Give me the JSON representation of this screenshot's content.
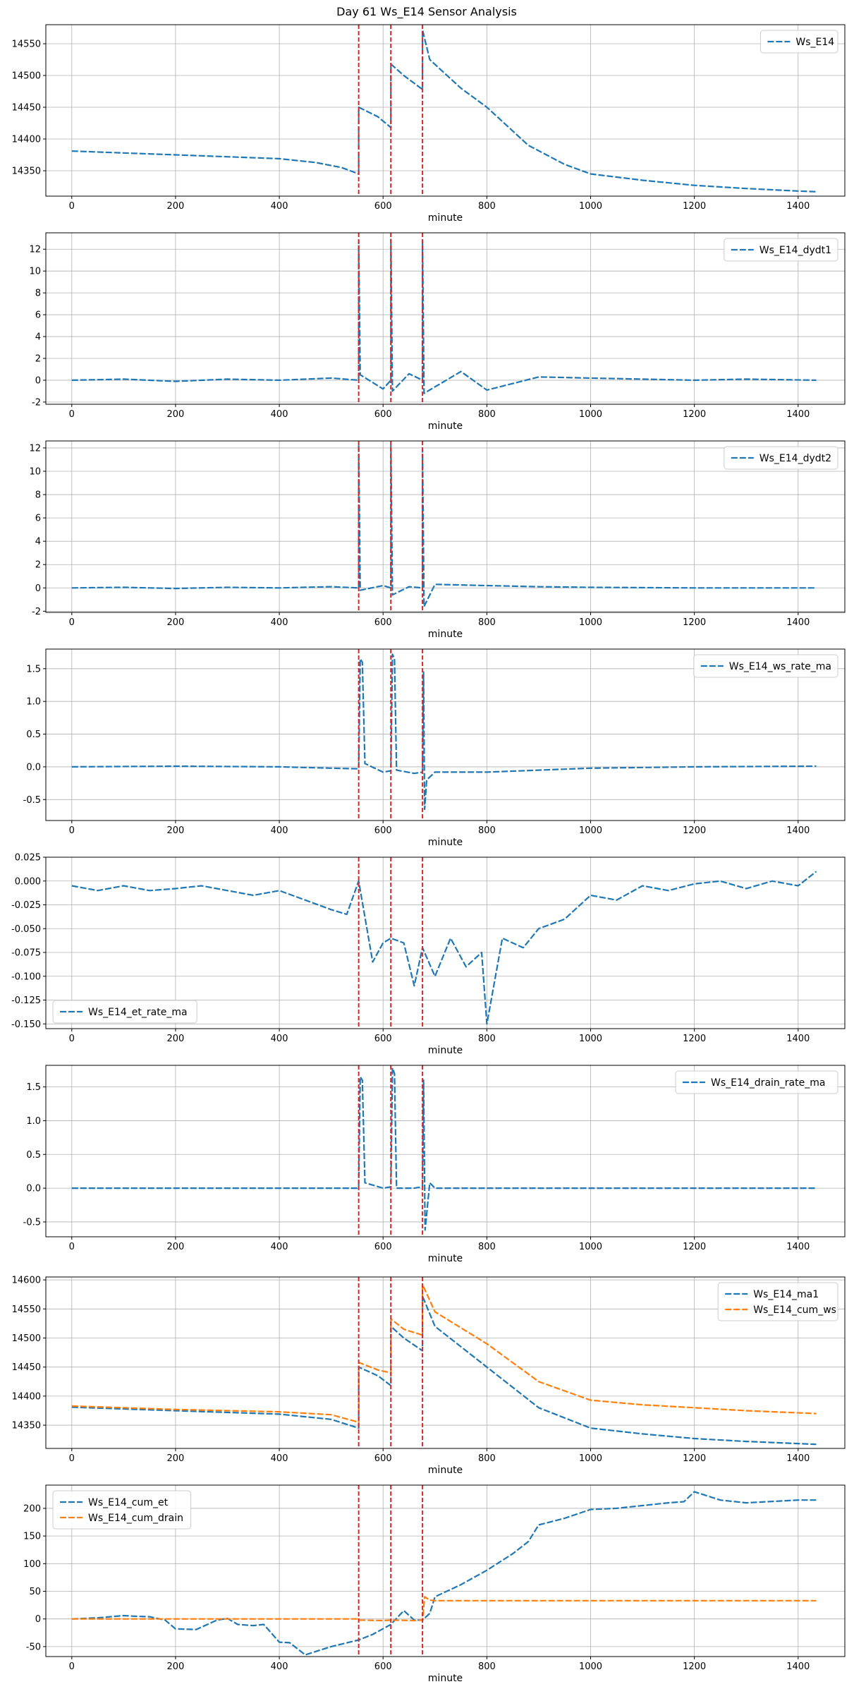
{
  "title": "Day 61 Ws_E14 Sensor Analysis",
  "colors": {
    "blue": "#1f77b4",
    "orange": "#ff7f0e",
    "event": "#d62728",
    "grid": "#b0b0b0"
  },
  "chart_data": [
    {
      "type": "line",
      "xlabel": "minute",
      "xlim": [
        -50,
        1490
      ],
      "ylim": [
        14310,
        14580
      ],
      "xticks": [
        0,
        200,
        400,
        600,
        800,
        1000,
        1200,
        1400
      ],
      "yticks": [
        14350,
        14400,
        14450,
        14500,
        14550
      ],
      "legend_position": "upper right",
      "events": [
        553,
        615,
        676
      ],
      "series": [
        {
          "name": "Ws_E14",
          "color": "#1f77b4",
          "x": [
            0,
            100,
            200,
            300,
            400,
            470,
            520,
            553,
            553,
            590,
            615,
            615,
            640,
            676,
            676,
            690,
            750,
            800,
            880,
            950,
            1000,
            1100,
            1200,
            1300,
            1400,
            1435
          ],
          "y": [
            14381,
            14378,
            14375,
            14372,
            14369,
            14363,
            14355,
            14345,
            14450,
            14435,
            14418,
            14518,
            14500,
            14478,
            14572,
            14525,
            14480,
            14450,
            14390,
            14360,
            14345,
            14335,
            14327,
            14322,
            14318,
            14317
          ]
        }
      ]
    },
    {
      "type": "line",
      "xlabel": "minute",
      "xlim": [
        -50,
        1490
      ],
      "ylim": [
        -2.2,
        13.5
      ],
      "xticks": [
        0,
        200,
        400,
        600,
        800,
        1000,
        1200,
        1400
      ],
      "yticks": [
        -2,
        0,
        2,
        4,
        6,
        8,
        10,
        12
      ],
      "legend_position": "upper right",
      "events": [
        553,
        615,
        676
      ],
      "series": [
        {
          "name": "Ws_E14_dydt1",
          "color": "#1f77b4",
          "x": [
            0,
            100,
            200,
            300,
            400,
            500,
            553,
            553,
            556,
            600,
            615,
            615,
            618,
            650,
            676,
            676,
            679,
            750,
            800,
            900,
            1000,
            1100,
            1200,
            1300,
            1435
          ],
          "y": [
            0,
            0.1,
            -0.1,
            0.1,
            0,
            0.2,
            0,
            12.8,
            0.5,
            -0.8,
            0,
            12.9,
            -1.0,
            0.6,
            0,
            12.8,
            -1.2,
            0.8,
            -0.9,
            0.3,
            0.2,
            0.1,
            0,
            0.1,
            0
          ]
        }
      ]
    },
    {
      "type": "line",
      "xlabel": "minute",
      "xlim": [
        -50,
        1490
      ],
      "ylim": [
        -2.1,
        12.6
      ],
      "xticks": [
        0,
        200,
        400,
        600,
        800,
        1000,
        1200,
        1400
      ],
      "yticks": [
        -2,
        0,
        2,
        4,
        6,
        8,
        10,
        12
      ],
      "legend_position": "upper right",
      "events": [
        553,
        615,
        676
      ],
      "series": [
        {
          "name": "Ws_E14_dydt2",
          "color": "#1f77b4",
          "x": [
            0,
            100,
            200,
            300,
            400,
            500,
            553,
            553,
            556,
            600,
            615,
            615,
            618,
            650,
            676,
            676,
            679,
            700,
            800,
            900,
            1000,
            1200,
            1435
          ],
          "y": [
            0,
            0.05,
            -0.05,
            0.05,
            0,
            0.1,
            0,
            12.3,
            -0.2,
            0.2,
            0,
            12.2,
            -0.6,
            0.1,
            0,
            11.9,
            -1.6,
            0.3,
            0.2,
            0.1,
            0.05,
            0,
            0
          ]
        }
      ]
    },
    {
      "type": "line",
      "xlabel": "minute",
      "xlim": [
        -50,
        1490
      ],
      "ylim": [
        -0.82,
        1.8
      ],
      "xticks": [
        0,
        200,
        400,
        600,
        800,
        1000,
        1200,
        1400
      ],
      "yticks": [
        -0.5,
        0.0,
        0.5,
        1.0,
        1.5
      ],
      "legend_position": "upper right",
      "events": [
        553,
        615,
        676
      ],
      "series": [
        {
          "name": "Ws_E14_ws_rate_ma",
          "color": "#1f77b4",
          "x": [
            0,
            200,
            400,
            500,
            553,
            556,
            560,
            565,
            600,
            615,
            618,
            622,
            626,
            660,
            676,
            678,
            680,
            684,
            700,
            800,
            900,
            1000,
            1200,
            1435
          ],
          "y": [
            0,
            0.01,
            0,
            -0.02,
            -0.03,
            1.65,
            1.6,
            0.05,
            -0.08,
            -0.06,
            1.72,
            1.65,
            -0.05,
            -0.1,
            -0.08,
            1.45,
            -0.65,
            -0.2,
            -0.08,
            -0.08,
            -0.05,
            -0.02,
            0,
            0.01
          ]
        }
      ]
    },
    {
      "type": "line",
      "xlabel": "minute",
      "xlim": [
        -50,
        1490
      ],
      "ylim": [
        -0.155,
        0.025
      ],
      "xticks": [
        0,
        200,
        400,
        600,
        800,
        1000,
        1200,
        1400
      ],
      "yticks": [
        -0.15,
        -0.125,
        -0.1,
        -0.075,
        -0.05,
        -0.025,
        0.0,
        0.025
      ],
      "legend_position": "lower left",
      "events": [
        553,
        615,
        676
      ],
      "series": [
        {
          "name": "Ws_E14_et_rate_ma",
          "color": "#1f77b4",
          "x": [
            0,
            50,
            100,
            150,
            200,
            250,
            300,
            350,
            400,
            450,
            500,
            530,
            553,
            580,
            600,
            615,
            640,
            660,
            676,
            700,
            730,
            760,
            790,
            800,
            830,
            870,
            900,
            950,
            1000,
            1050,
            1100,
            1150,
            1200,
            1250,
            1300,
            1350,
            1400,
            1435
          ],
          "y": [
            -0.005,
            -0.01,
            -0.005,
            -0.01,
            -0.008,
            -0.005,
            -0.01,
            -0.015,
            -0.01,
            -0.02,
            -0.03,
            -0.035,
            0.0,
            -0.085,
            -0.065,
            -0.06,
            -0.065,
            -0.11,
            -0.07,
            -0.1,
            -0.06,
            -0.09,
            -0.075,
            -0.15,
            -0.06,
            -0.07,
            -0.05,
            -0.04,
            -0.015,
            -0.02,
            -0.005,
            -0.01,
            -0.003,
            0.0,
            -0.008,
            0.0,
            -0.005,
            0.01
          ]
        }
      ]
    },
    {
      "type": "line",
      "xlabel": "minute",
      "xlim": [
        -50,
        1490
      ],
      "ylim": [
        -0.72,
        1.82
      ],
      "xticks": [
        0,
        200,
        400,
        600,
        800,
        1000,
        1200,
        1400
      ],
      "yticks": [
        -0.5,
        0.0,
        0.5,
        1.0,
        1.5
      ],
      "legend_position": "upper right",
      "events": [
        553,
        615,
        676
      ],
      "series": [
        {
          "name": "Ws_E14_drain_rate_ma",
          "color": "#1f77b4",
          "x": [
            0,
            200,
            400,
            550,
            553,
            556,
            560,
            565,
            600,
            615,
            618,
            622,
            626,
            660,
            676,
            678,
            681,
            690,
            700,
            800,
            1000,
            1200,
            1435
          ],
          "y": [
            0,
            0,
            0,
            0,
            0.02,
            1.65,
            1.6,
            0.08,
            0.0,
            0.02,
            1.78,
            1.7,
            0.0,
            0.0,
            0.02,
            1.6,
            -0.62,
            0.08,
            0,
            0,
            0,
            0,
            0
          ]
        }
      ]
    },
    {
      "type": "line",
      "xlabel": "minute",
      "xlim": [
        -50,
        1490
      ],
      "ylim": [
        14310,
        14605
      ],
      "xticks": [
        0,
        200,
        400,
        600,
        800,
        1000,
        1200,
        1400
      ],
      "yticks": [
        14350,
        14400,
        14450,
        14500,
        14550,
        14600
      ],
      "legend_position": "upper right",
      "events": [
        553,
        615,
        676
      ],
      "series": [
        {
          "name": "Ws_E14_ma1",
          "color": "#1f77b4",
          "x": [
            0,
            200,
            400,
            500,
            553,
            553,
            590,
            615,
            615,
            640,
            676,
            676,
            700,
            800,
            900,
            1000,
            1100,
            1200,
            1300,
            1435
          ],
          "y": [
            14381,
            14375,
            14369,
            14360,
            14345,
            14450,
            14435,
            14418,
            14520,
            14500,
            14478,
            14572,
            14520,
            14450,
            14380,
            14345,
            14335,
            14327,
            14322,
            14317
          ]
        },
        {
          "name": "Ws_E14_cum_ws",
          "color": "#ff7f0e",
          "x": [
            0,
            200,
            400,
            500,
            553,
            553,
            590,
            615,
            615,
            640,
            676,
            676,
            700,
            800,
            900,
            1000,
            1100,
            1200,
            1300,
            1435
          ],
          "y": [
            14383,
            14377,
            14373,
            14368,
            14355,
            14458,
            14445,
            14440,
            14533,
            14515,
            14505,
            14592,
            14545,
            14490,
            14425,
            14393,
            14385,
            14380,
            14375,
            14370
          ]
        }
      ]
    },
    {
      "type": "line",
      "xlabel": "minute",
      "xlim": [
        -50,
        1490
      ],
      "ylim": [
        -68,
        242
      ],
      "xticks": [
        0,
        200,
        400,
        600,
        800,
        1000,
        1200,
        1400
      ],
      "yticks": [
        -50,
        0,
        50,
        100,
        150,
        200
      ],
      "legend_position": "upper left",
      "events": [
        553,
        615,
        676
      ],
      "series": [
        {
          "name": "Ws_E14_cum_et",
          "color": "#1f77b4",
          "x": [
            0,
            50,
            100,
            120,
            150,
            180,
            200,
            240,
            280,
            300,
            320,
            350,
            370,
            400,
            420,
            450,
            500,
            553,
            580,
            615,
            640,
            660,
            676,
            690,
            700,
            750,
            800,
            850,
            880,
            900,
            950,
            1000,
            1050,
            1100,
            1150,
            1180,
            1200,
            1250,
            1300,
            1400,
            1435
          ],
          "y": [
            0,
            2,
            6,
            5,
            4,
            -2,
            -18,
            -19,
            -2,
            1,
            -10,
            -12,
            -10,
            -42,
            -43,
            -65,
            -50,
            -38,
            -28,
            -10,
            15,
            -2,
            -2,
            10,
            40,
            62,
            88,
            118,
            140,
            170,
            182,
            198,
            200,
            205,
            210,
            212,
            230,
            215,
            210,
            215,
            215
          ]
        },
        {
          "name": "Ws_E14_cum_drain",
          "color": "#ff7f0e",
          "x": [
            0,
            200,
            400,
            550,
            553,
            600,
            615,
            660,
            676,
            680,
            690,
            700,
            800,
            1000,
            1200,
            1435
          ],
          "y": [
            0,
            0,
            0,
            0,
            -2,
            -3,
            -2,
            -3,
            -2,
            40,
            34,
            33,
            33,
            33,
            33,
            33
          ]
        }
      ]
    }
  ]
}
